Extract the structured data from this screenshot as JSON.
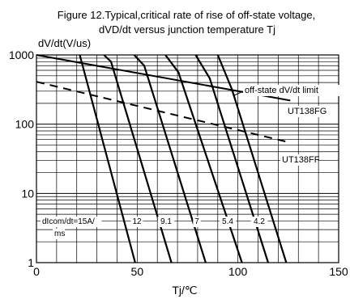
{
  "chart_data": {
    "type": "line",
    "title": "Figure 12.Typical,critical rate of rise of off-state voltage,",
    "subtitle": "dVD/dt versus junction temperature Tj",
    "ylabel": "dV/dt(V/us)",
    "xlabel": "Tj/℃",
    "xlim": [
      0,
      150
    ],
    "ylim": [
      1,
      1000
    ],
    "y_scale": "log",
    "x_ticks": [
      "0",
      "50",
      "100",
      "150"
    ],
    "y_ticks": [
      "1",
      "10",
      "100",
      "1000"
    ],
    "limit_label": "off-state dV/dt limit",
    "limit_lines": [
      {
        "name": "UT138FG",
        "style": "solid",
        "x": [
          0,
          126
        ],
        "y": [
          1000,
          220
        ]
      },
      {
        "name": "UT138FF",
        "style": "dashed",
        "x": [
          0,
          124
        ],
        "y": [
          410,
          56
        ]
      }
    ],
    "dicom_label": "dIcom/dt=15A/ms",
    "dicom_values": [
      "12",
      "9.1",
      "7",
      "5.4",
      "4.2"
    ],
    "curves": [
      {
        "name": "15",
        "x": [
          21.5,
          49
        ],
        "y": [
          1000,
          1
        ]
      },
      {
        "name": "12",
        "x": [
          33.5,
          37,
          67
        ],
        "y": [
          1000,
          800,
          1
        ]
      },
      {
        "name": "9.1",
        "x": [
          48.5,
          53.5,
          84
        ],
        "y": [
          1000,
          700,
          1
        ]
      },
      {
        "name": "7",
        "x": [
          64,
          70.5,
          102
        ],
        "y": [
          1000,
          560,
          1
        ]
      },
      {
        "name": "5.4",
        "x": [
          79,
          86,
          115
        ],
        "y": [
          1000,
          460,
          1
        ]
      },
      {
        "name": "4.2",
        "x": [
          90,
          97,
          124
        ],
        "y": [
          1000,
          320,
          1
        ]
      }
    ]
  }
}
